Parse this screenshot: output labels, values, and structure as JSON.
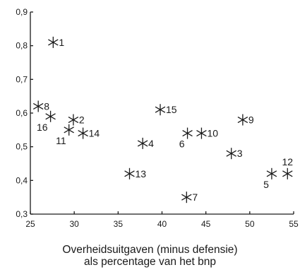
{
  "chart_data": {
    "type": "scatter",
    "title": "",
    "xlabel_lines": [
      "Overheidsuitgaven (minus defensie)",
      "als percentage van het bnp"
    ],
    "ylabel": "",
    "xlim": [
      25,
      55
    ],
    "ylim": [
      0.3,
      0.9
    ],
    "x_ticks": [
      "25",
      "30",
      "35",
      "40",
      "45",
      "50",
      "55"
    ],
    "y_ticks": [
      "0,3",
      "0,4",
      "0,5",
      "0,6",
      "0,7",
      "0,8",
      "0,9"
    ],
    "grid": false,
    "marker": "asterisk",
    "points": [
      {
        "label": "1",
        "x": 27.6,
        "y": 0.81
      },
      {
        "label": "2",
        "x": 29.9,
        "y": 0.58
      },
      {
        "label": "3",
        "x": 47.9,
        "y": 0.48
      },
      {
        "label": "4",
        "x": 37.8,
        "y": 0.51
      },
      {
        "label": "5",
        "x": 52.5,
        "y": 0.42
      },
      {
        "label": "6",
        "x": 42.9,
        "y": 0.54
      },
      {
        "label": "7",
        "x": 42.8,
        "y": 0.35
      },
      {
        "label": "8",
        "x": 25.9,
        "y": 0.62
      },
      {
        "label": "9",
        "x": 49.2,
        "y": 0.58
      },
      {
        "label": "10",
        "x": 44.5,
        "y": 0.54
      },
      {
        "label": "11",
        "x": 29.4,
        "y": 0.55
      },
      {
        "label": "12",
        "x": 54.3,
        "y": 0.42
      },
      {
        "label": "13",
        "x": 36.3,
        "y": 0.42
      },
      {
        "label": "14",
        "x": 31.0,
        "y": 0.54
      },
      {
        "label": "15",
        "x": 39.8,
        "y": 0.61
      },
      {
        "label": "16",
        "x": 27.3,
        "y": 0.59
      }
    ]
  }
}
